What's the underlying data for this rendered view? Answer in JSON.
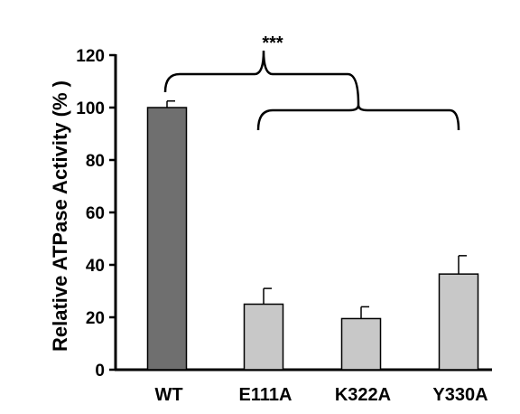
{
  "chart_data": {
    "type": "bar",
    "title": "",
    "xlabel": "",
    "ylabel": "Relative ATPase Activity (% )",
    "ylim": [
      0,
      120
    ],
    "yticks": [
      0,
      20,
      40,
      60,
      80,
      100,
      120
    ],
    "categories": [
      "WT",
      "E111A",
      "K322A",
      "Y330A"
    ],
    "values": [
      100,
      25,
      19.5,
      36.5
    ],
    "errors": [
      2.5,
      6,
      4.5,
      7
    ],
    "bar_colors": [
      "#6f6f6f",
      "#c8c8c8",
      "#c8c8c8",
      "#c8c8c8"
    ],
    "grid": false,
    "annotations": [
      {
        "text": "***",
        "type": "significance-bracket",
        "compares": [
          "WT",
          "E111A, K322A, Y330A"
        ]
      }
    ]
  }
}
